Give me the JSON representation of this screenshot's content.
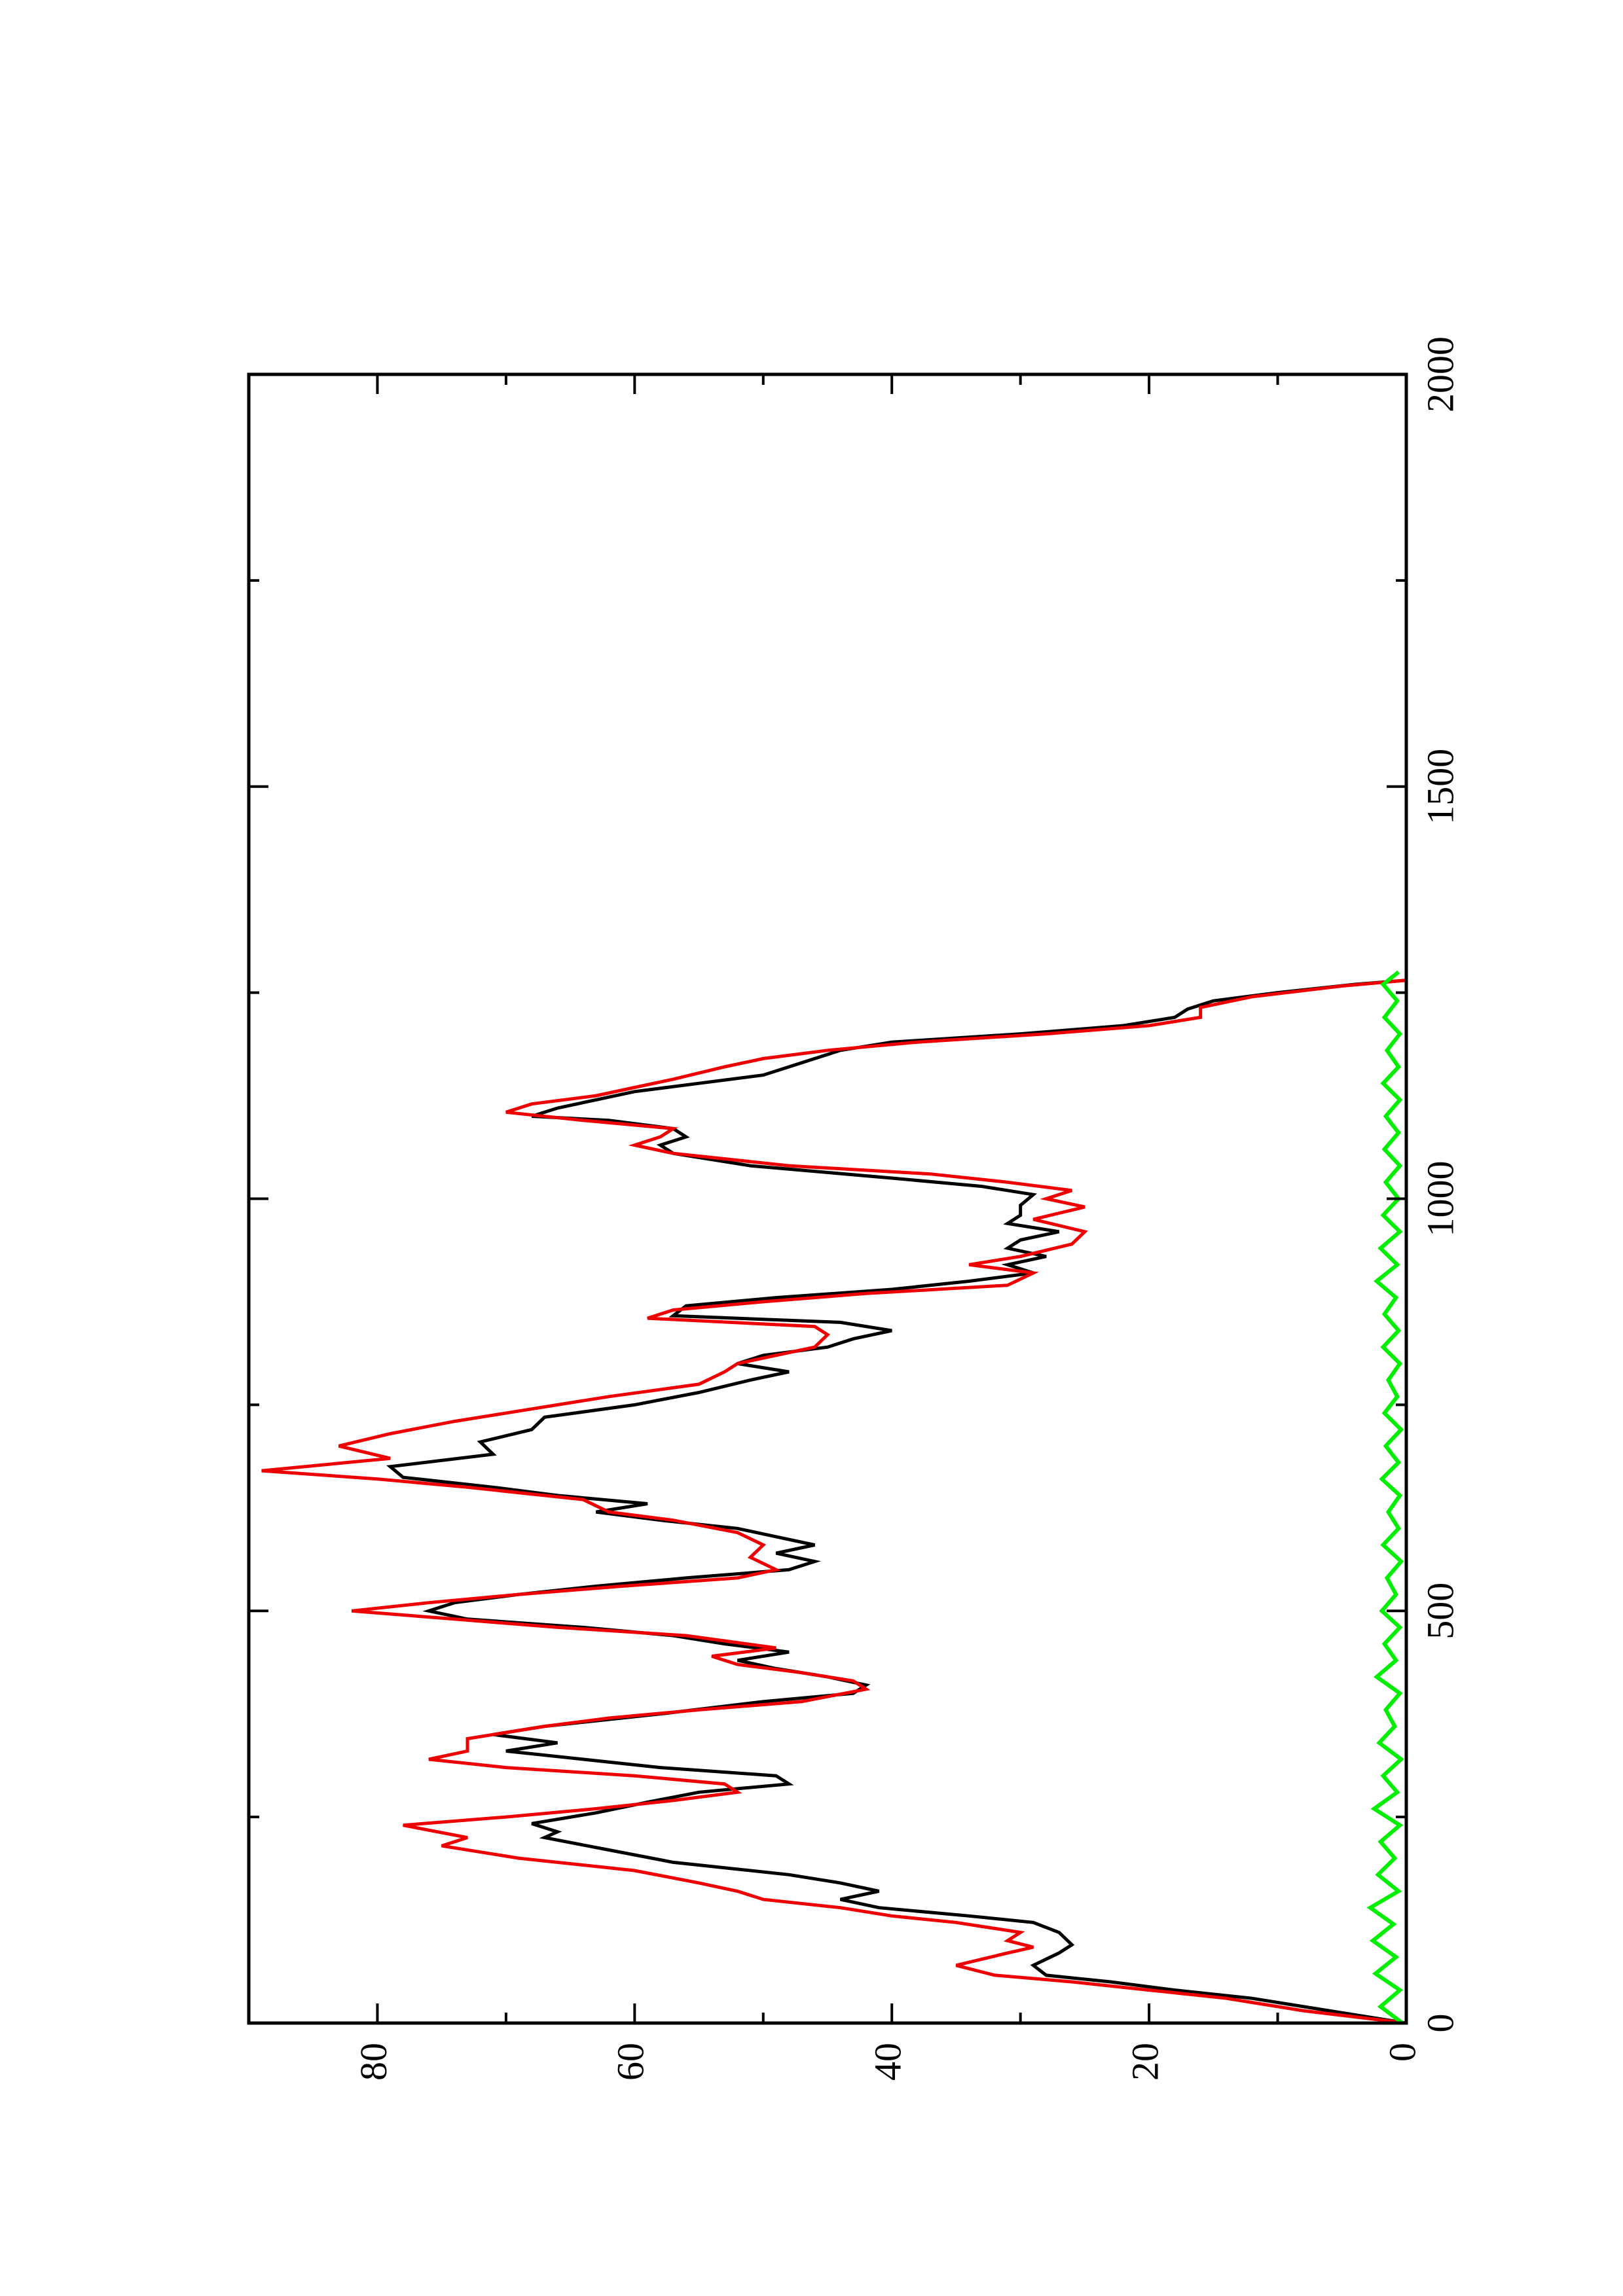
{
  "chart_data": {
    "type": "line",
    "orientation": "rotated-90-ccw",
    "title": "",
    "xlabel": "",
    "ylabel": "",
    "xlim": [
      0,
      2000
    ],
    "ylim": [
      0,
      90
    ],
    "x_ticks": [
      0,
      500,
      1000,
      1500,
      2000
    ],
    "x_minor_ticks": [
      250,
      750,
      1250,
      1750
    ],
    "y_ticks": [
      0,
      20,
      40,
      60,
      80
    ],
    "y_minor_ticks": [
      10,
      30,
      50,
      70
    ],
    "x_tick_labels": [
      "0",
      "500",
      "1000",
      "1500",
      "2000"
    ],
    "y_tick_labels": [
      "0",
      "20",
      "40",
      "60",
      "80"
    ],
    "grid": false,
    "legend": "none",
    "series": [
      {
        "color": "#000000",
        "points": [
          [
            0,
            0
          ],
          [
            15,
            6
          ],
          [
            30,
            12
          ],
          [
            40,
            18
          ],
          [
            50,
            23
          ],
          [
            58,
            28
          ],
          [
            70,
            29
          ],
          [
            85,
            27
          ],
          [
            95,
            26
          ],
          [
            110,
            27
          ],
          [
            122,
            29
          ],
          [
            130,
            34
          ],
          [
            140,
            41
          ],
          [
            150,
            44
          ],
          [
            160,
            41
          ],
          [
            170,
            44
          ],
          [
            180,
            48
          ],
          [
            195,
            57
          ],
          [
            210,
            62
          ],
          [
            225,
            67
          ],
          [
            232,
            66
          ],
          [
            242,
            68
          ],
          [
            255,
            63
          ],
          [
            268,
            59
          ],
          [
            280,
            55
          ],
          [
            290,
            48
          ],
          [
            300,
            49
          ],
          [
            310,
            58
          ],
          [
            320,
            64
          ],
          [
            330,
            70
          ],
          [
            340,
            66
          ],
          [
            350,
            71
          ],
          [
            360,
            67
          ],
          [
            375,
            58
          ],
          [
            390,
            50
          ],
          [
            400,
            43
          ],
          [
            410,
            42
          ],
          [
            420,
            45
          ],
          [
            430,
            49
          ],
          [
            440,
            52
          ],
          [
            450,
            48
          ],
          [
            460,
            53
          ],
          [
            470,
            57
          ],
          [
            480,
            64
          ],
          [
            490,
            73
          ],
          [
            500,
            76
          ],
          [
            510,
            74
          ],
          [
            520,
            69
          ],
          [
            530,
            63
          ],
          [
            540,
            56
          ],
          [
            550,
            48
          ],
          [
            560,
            46
          ],
          [
            570,
            49
          ],
          [
            580,
            46
          ],
          [
            590,
            49
          ],
          [
            600,
            52
          ],
          [
            610,
            58
          ],
          [
            620,
            63
          ],
          [
            630,
            59
          ],
          [
            640,
            66
          ],
          [
            650,
            71
          ],
          [
            662,
            78
          ],
          [
            675,
            79
          ],
          [
            690,
            71
          ],
          [
            705,
            72
          ],
          [
            720,
            68
          ],
          [
            735,
            67
          ],
          [
            750,
            60
          ],
          [
            765,
            55
          ],
          [
            780,
            51
          ],
          [
            790,
            48
          ],
          [
            800,
            52
          ],
          [
            810,
            50
          ],
          [
            820,
            45
          ],
          [
            830,
            43
          ],
          [
            840,
            40
          ],
          [
            850,
            44
          ],
          [
            858,
            57
          ],
          [
            870,
            56
          ],
          [
            880,
            49
          ],
          [
            890,
            40
          ],
          [
            900,
            34
          ],
          [
            910,
            29
          ],
          [
            920,
            31
          ],
          [
            930,
            28
          ],
          [
            940,
            31
          ],
          [
            950,
            30
          ],
          [
            960,
            27
          ],
          [
            970,
            31
          ],
          [
            980,
            30
          ],
          [
            992,
            30
          ],
          [
            1005,
            29
          ],
          [
            1015,
            33
          ],
          [
            1025,
            40
          ],
          [
            1040,
            51
          ],
          [
            1055,
            57
          ],
          [
            1065,
            58
          ],
          [
            1075,
            56
          ],
          [
            1085,
            57
          ],
          [
            1095,
            62
          ],
          [
            1100,
            68
          ],
          [
            1110,
            66
          ],
          [
            1120,
            63
          ],
          [
            1130,
            60
          ],
          [
            1140,
            55
          ],
          [
            1150,
            50
          ],
          [
            1160,
            48
          ],
          [
            1170,
            46
          ],
          [
            1180,
            44
          ],
          [
            1190,
            40
          ],
          [
            1200,
            30
          ],
          [
            1210,
            22
          ],
          [
            1220,
            18
          ],
          [
            1230,
            17
          ],
          [
            1240,
            15
          ],
          [
            1250,
            10
          ],
          [
            1260,
            4
          ],
          [
            1265,
            0
          ]
        ]
      },
      {
        "color": "#ee0000",
        "points": [
          [
            0,
            0
          ],
          [
            15,
            8
          ],
          [
            30,
            14
          ],
          [
            40,
            20
          ],
          [
            50,
            26
          ],
          [
            58,
            32
          ],
          [
            70,
            35
          ],
          [
            85,
            31
          ],
          [
            92,
            29
          ],
          [
            100,
            31
          ],
          [
            110,
            30
          ],
          [
            122,
            35
          ],
          [
            130,
            40
          ],
          [
            140,
            44
          ],
          [
            150,
            50
          ],
          [
            160,
            52
          ],
          [
            170,
            55
          ],
          [
            185,
            60
          ],
          [
            200,
            69
          ],
          [
            215,
            75
          ],
          [
            225,
            73
          ],
          [
            240,
            78
          ],
          [
            250,
            70
          ],
          [
            260,
            63
          ],
          [
            270,
            57
          ],
          [
            280,
            52
          ],
          [
            290,
            53
          ],
          [
            300,
            60
          ],
          [
            310,
            70
          ],
          [
            320,
            76
          ],
          [
            330,
            73
          ],
          [
            345,
            73
          ],
          [
            360,
            67
          ],
          [
            370,
            62
          ],
          [
            380,
            55
          ],
          [
            390,
            47
          ],
          [
            405,
            42
          ],
          [
            415,
            43
          ],
          [
            425,
            47
          ],
          [
            435,
            52
          ],
          [
            445,
            54
          ],
          [
            455,
            49
          ],
          [
            470,
            56
          ],
          [
            480,
            66
          ],
          [
            490,
            74
          ],
          [
            500,
            82
          ],
          [
            510,
            76
          ],
          [
            520,
            69
          ],
          [
            530,
            61
          ],
          [
            540,
            52
          ],
          [
            550,
            49
          ],
          [
            565,
            51
          ],
          [
            580,
            50
          ],
          [
            595,
            52
          ],
          [
            610,
            57
          ],
          [
            620,
            62
          ],
          [
            635,
            64
          ],
          [
            650,
            73
          ],
          [
            660,
            80
          ],
          [
            670,
            89
          ],
          [
            685,
            79
          ],
          [
            700,
            83
          ],
          [
            715,
            79
          ],
          [
            730,
            74
          ],
          [
            745,
            68
          ],
          [
            760,
            62
          ],
          [
            775,
            55
          ],
          [
            790,
            53
          ],
          [
            800,
            52
          ],
          [
            810,
            49
          ],
          [
            820,
            46
          ],
          [
            835,
            45
          ],
          [
            845,
            46
          ],
          [
            855,
            59
          ],
          [
            865,
            57
          ],
          [
            875,
            50
          ],
          [
            885,
            42
          ],
          [
            895,
            31
          ],
          [
            910,
            29
          ],
          [
            920,
            34
          ],
          [
            930,
            30
          ],
          [
            945,
            26
          ],
          [
            960,
            25
          ],
          [
            975,
            29
          ],
          [
            990,
            25
          ],
          [
            1000,
            28
          ],
          [
            1010,
            26
          ],
          [
            1020,
            31
          ],
          [
            1030,
            37
          ],
          [
            1040,
            48
          ],
          [
            1055,
            57
          ],
          [
            1065,
            60
          ],
          [
            1075,
            58
          ],
          [
            1085,
            57
          ],
          [
            1095,
            64
          ],
          [
            1105,
            70
          ],
          [
            1115,
            68
          ],
          [
            1125,
            63
          ],
          [
            1135,
            60
          ],
          [
            1145,
            57
          ],
          [
            1160,
            53
          ],
          [
            1170,
            50
          ],
          [
            1180,
            45
          ],
          [
            1190,
            38
          ],
          [
            1200,
            28
          ],
          [
            1210,
            20
          ],
          [
            1220,
            16
          ],
          [
            1232,
            16
          ],
          [
            1245,
            12
          ],
          [
            1258,
            5
          ],
          [
            1265,
            0
          ]
        ]
      },
      {
        "color": "#00ee00",
        "points": [
          [
            0,
            0.3
          ],
          [
            20,
            2.0
          ],
          [
            40,
            0.5
          ],
          [
            60,
            2.4
          ],
          [
            80,
            0.8
          ],
          [
            100,
            2.6
          ],
          [
            120,
            1.0
          ],
          [
            140,
            2.8
          ],
          [
            160,
            0.6
          ],
          [
            180,
            2.2
          ],
          [
            200,
            0.9
          ],
          [
            220,
            2.0
          ],
          [
            240,
            0.5
          ],
          [
            260,
            2.5
          ],
          [
            280,
            0.7
          ],
          [
            300,
            1.8
          ],
          [
            320,
            0.4
          ],
          [
            340,
            2.1
          ],
          [
            360,
            0.9
          ],
          [
            380,
            1.6
          ],
          [
            400,
            0.5
          ],
          [
            420,
            2.3
          ],
          [
            440,
            0.8
          ],
          [
            460,
            1.7
          ],
          [
            480,
            0.5
          ],
          [
            500,
            1.9
          ],
          [
            520,
            0.8
          ],
          [
            540,
            1.5
          ],
          [
            560,
            0.4
          ],
          [
            580,
            1.8
          ],
          [
            600,
            0.6
          ],
          [
            620,
            1.4
          ],
          [
            640,
            0.5
          ],
          [
            660,
            1.9
          ],
          [
            680,
            0.6
          ],
          [
            700,
            1.6
          ],
          [
            720,
            0.4
          ],
          [
            740,
            1.7
          ],
          [
            760,
            0.7
          ],
          [
            780,
            1.4
          ],
          [
            800,
            0.5
          ],
          [
            820,
            1.8
          ],
          [
            840,
            0.6
          ],
          [
            860,
            1.7
          ],
          [
            880,
            0.8
          ],
          [
            900,
            2.3
          ],
          [
            920,
            0.7
          ],
          [
            940,
            2.0
          ],
          [
            960,
            0.5
          ],
          [
            980,
            1.8
          ],
          [
            1000,
            0.6
          ],
          [
            1020,
            1.6
          ],
          [
            1040,
            0.5
          ],
          [
            1060,
            1.7
          ],
          [
            1080,
            0.6
          ],
          [
            1100,
            1.6
          ],
          [
            1120,
            0.5
          ],
          [
            1140,
            1.8
          ],
          [
            1160,
            0.6
          ],
          [
            1180,
            1.5
          ],
          [
            1200,
            0.5
          ],
          [
            1220,
            1.7
          ],
          [
            1240,
            0.7
          ],
          [
            1260,
            1.8
          ],
          [
            1275,
            0.6
          ]
        ]
      }
    ]
  }
}
